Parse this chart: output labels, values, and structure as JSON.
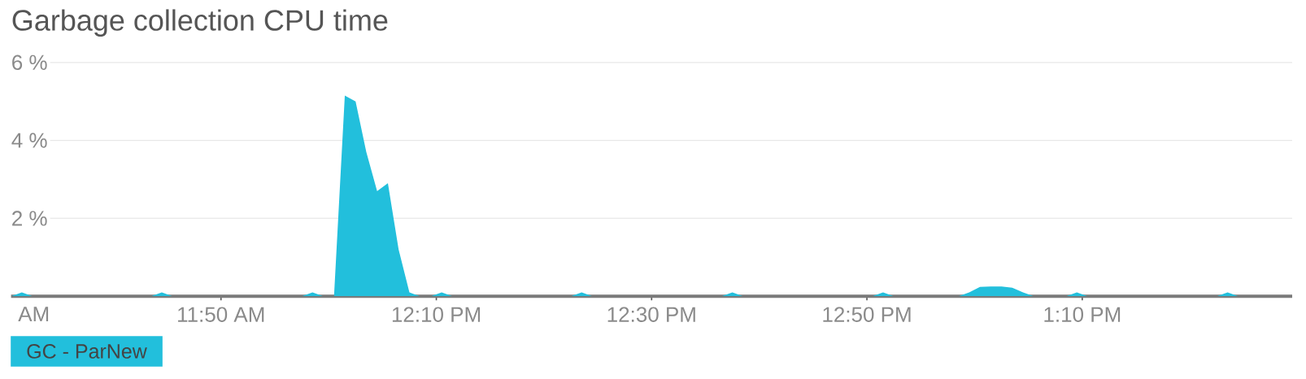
{
  "chart_data": {
    "type": "area",
    "title": "Garbage collection CPU time",
    "annotations": [
      "AM"
    ],
    "x": [
      11.5083,
      11.525,
      11.5417,
      11.725,
      11.7417,
      11.7583,
      11.9583,
      11.975,
      11.9917,
      12.0083,
      12.025,
      12.0417,
      12.0583,
      12.075,
      12.0917,
      12.1083,
      12.125,
      12.1417,
      12.1583,
      12.175,
      12.1917,
      12.375,
      12.3917,
      12.4083,
      12.6083,
      12.625,
      12.6417,
      12.8417,
      12.8583,
      12.875,
      12.975,
      12.9917,
      13.0083,
      13.025,
      13.0417,
      13.0583,
      13.075,
      13.0917,
      13.1417,
      13.1583,
      13.175,
      13.375,
      13.3917,
      13.4083,
      13.4917
    ],
    "series": [
      {
        "name": "GC - ParNew",
        "color": "#22bfdc",
        "values": [
          0,
          0.1,
          0,
          0,
          0.1,
          0,
          0,
          0.1,
          0,
          0,
          5.15,
          5.0,
          3.7,
          2.7,
          2.9,
          1.2,
          0.1,
          0,
          0,
          0.1,
          0,
          0,
          0.1,
          0,
          0,
          0.1,
          0,
          0,
          0.1,
          0,
          0,
          0.1,
          0.24,
          0.25,
          0.25,
          0.22,
          0.1,
          0,
          0,
          0.1,
          0,
          0,
          0.1,
          0,
          0
        ]
      }
    ],
    "xlim": [
      11.5083,
      13.4917
    ],
    "xticks": [
      {
        "value": 11.8333,
        "label": "11:50 AM"
      },
      {
        "value": 12.1667,
        "label": "12:10 PM"
      },
      {
        "value": 12.5,
        "label": "12:30 PM"
      },
      {
        "value": 12.8333,
        "label": "12:50 PM"
      },
      {
        "value": 13.1667,
        "label": "1:10 PM"
      }
    ],
    "ylim": [
      0,
      6
    ],
    "yticks": [
      {
        "value": 2,
        "label": "2 %"
      },
      {
        "value": 4,
        "label": "4 %"
      },
      {
        "value": 6,
        "label": "6 %"
      }
    ],
    "grid": "y",
    "legend": "bottom left"
  }
}
